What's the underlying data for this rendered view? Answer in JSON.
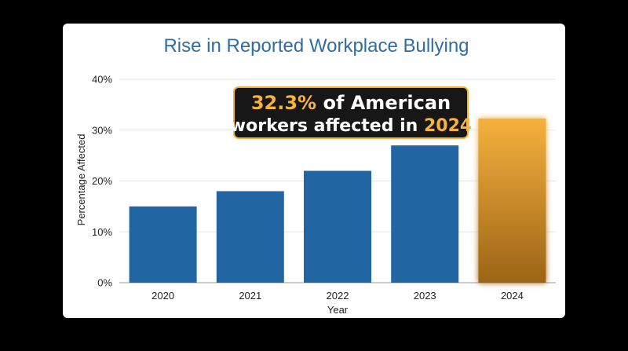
{
  "chart_data": {
    "type": "bar",
    "title": "Rise in Reported Workplace Bullying",
    "xlabel": "Year",
    "ylabel": "Percentage Affected",
    "categories": [
      "2020",
      "2021",
      "2022",
      "2023",
      "2024"
    ],
    "values": [
      15,
      18,
      22,
      27,
      32.3
    ],
    "ylim": [
      0,
      40
    ],
    "yticks": [
      "0%",
      "10%",
      "20%",
      "30%",
      "40%"
    ],
    "grid": true,
    "highlight_index": 4,
    "annotation": {
      "line1_value": "32.3%",
      "line1_rest": " of  American",
      "line2_text": "workers affected in ",
      "line2_year": "2024"
    },
    "colors": {
      "bar": "#2166a3",
      "highlight_top": "#f5b13e",
      "highlight_bottom": "#9c6416",
      "title": "#2f6da5",
      "annotation_bg": "#171717",
      "annotation_accent": "#f6b23c",
      "grid": "#e6e6e6"
    }
  }
}
